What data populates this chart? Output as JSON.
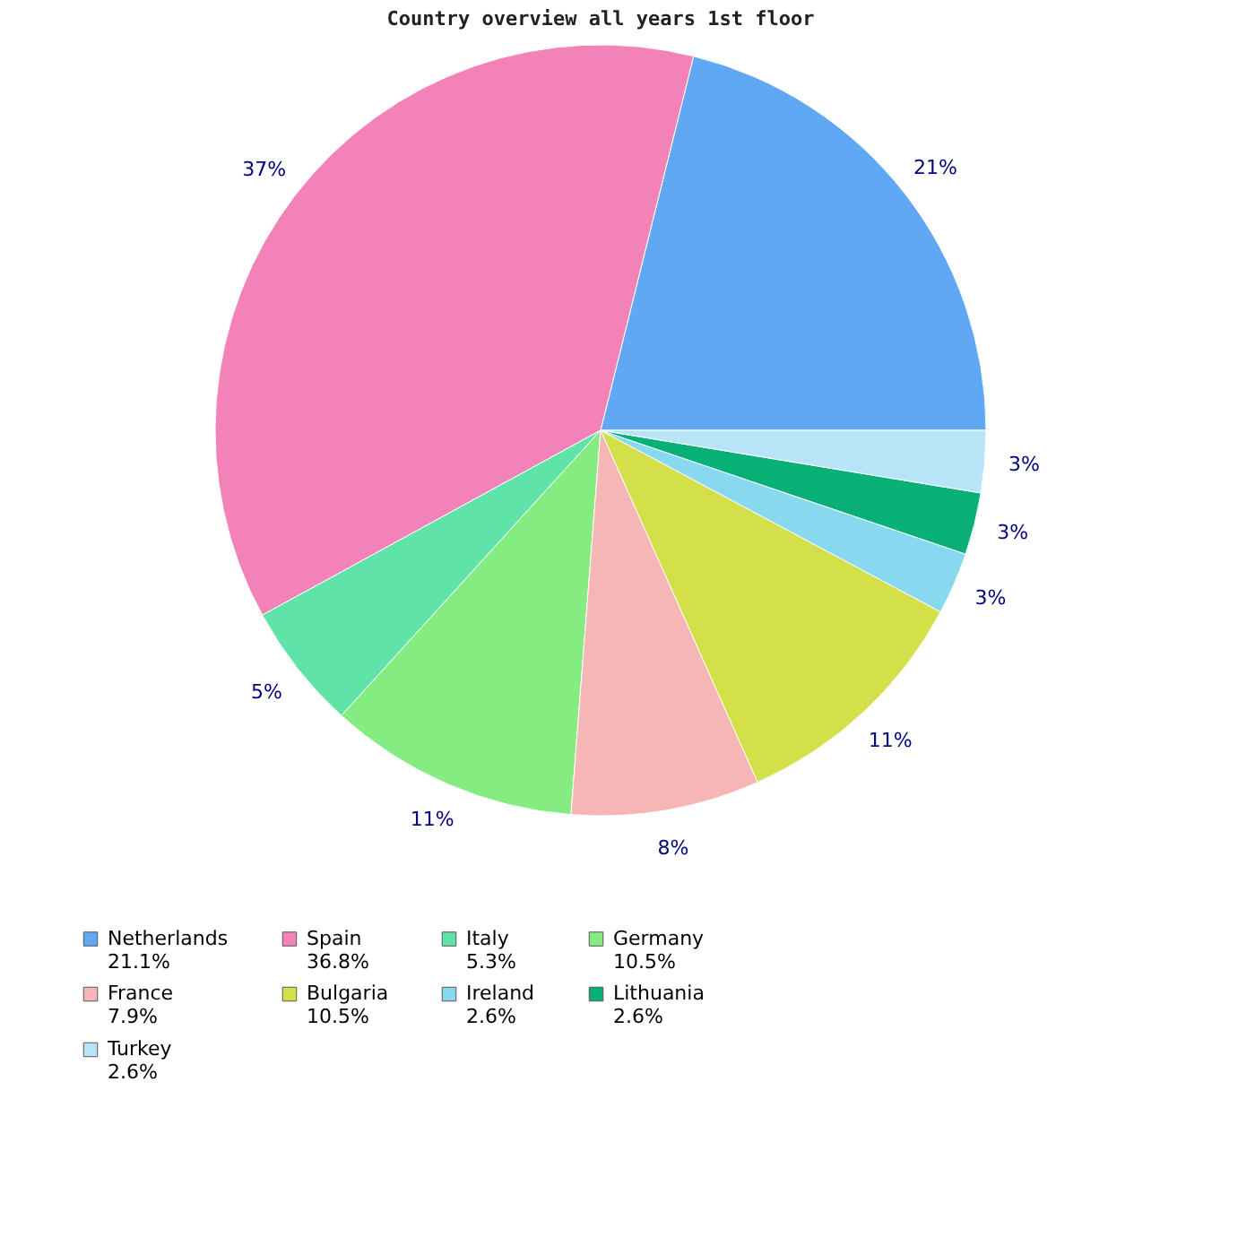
{
  "chart_data": {
    "type": "pie",
    "title": "Country overview all years 1st floor",
    "categories": [
      "Netherlands\n21.1%",
      "Spain\n36.8%",
      "Italy\n5.3%",
      "Germany\n10.5%",
      "France\n7.9%",
      "Bulgaria\n10.5%",
      "Ireland\n2.6%",
      "Lithuania\n2.6%",
      "Turkey\n2.6%"
    ],
    "values": [
      21.1,
      36.8,
      5.3,
      10.5,
      7.9,
      10.5,
      2.6,
      2.6,
      2.6
    ],
    "value_labels": [
      "21%",
      "37%",
      "5%",
      "11%",
      "8%",
      "11%",
      "3%",
      "3%",
      "3%"
    ],
    "colors": [
      "#60a8f4",
      "#f282b8",
      "#5fe3a8",
      "#84ec80",
      "#f7b6b6",
      "#d3e04a",
      "#88d8f0",
      "#08b078",
      "#b8e4f8"
    ],
    "legend": "bottom"
  }
}
